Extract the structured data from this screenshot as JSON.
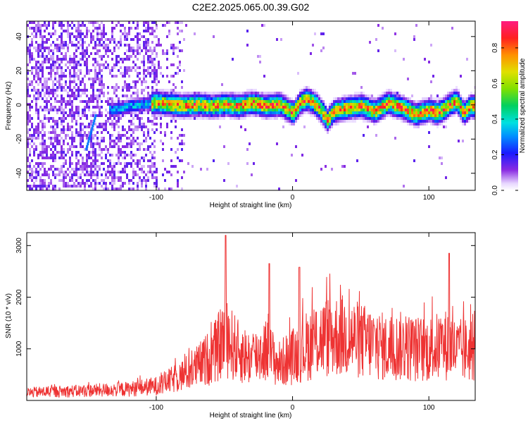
{
  "title": "C2E2.2025.065.00.39.G02",
  "chart_data": [
    {
      "type": "heatmap",
      "xlabel": "Height of straight line (km)",
      "ylabel": "Frequency (Hz)",
      "xlim": [
        -195,
        134
      ],
      "ylim": [
        -50,
        49
      ],
      "xticks": [
        -100,
        0,
        100
      ],
      "yticks": [
        -40,
        -20,
        0,
        20,
        40
      ],
      "grid": false,
      "signal_ridge": {
        "x": [
          -130,
          -120,
          -110,
          -100,
          -90,
          -80,
          -70,
          -60,
          -50,
          -40,
          -30,
          -20,
          -10,
          0,
          5,
          10,
          15,
          20,
          25,
          30,
          40,
          50,
          60,
          70,
          80,
          90,
          100,
          105,
          110,
          115,
          120,
          125,
          130
        ],
        "frequency": [
          -2,
          0,
          1,
          2,
          1,
          0,
          1,
          0,
          1,
          0,
          2,
          0,
          1,
          -4,
          2,
          4,
          2,
          -2,
          -8,
          -3,
          -1,
          0,
          -3,
          2,
          -1,
          -5,
          -2,
          -4,
          -2,
          1,
          3,
          -4,
          0
        ]
      },
      "colorbar": {
        "label": "Normalized spectral amplitude",
        "range": [
          0,
          0.95
        ],
        "ticks": [
          "0.0",
          "0.2",
          "0.4",
          "0.6",
          "0.8"
        ],
        "colormap": "rainbow"
      }
    },
    {
      "type": "line",
      "xlabel": "Height of straight line (km)",
      "ylabel": "SNR (10 * v/v)",
      "xlim": [
        -195,
        134
      ],
      "ylim": [
        0,
        3250
      ],
      "xticks": [
        -100,
        0,
        100
      ],
      "yticks": [
        1000,
        2000,
        3000
      ],
      "grid": false,
      "series": [
        {
          "color": "#ee3333",
          "x": [
            -195,
            -180,
            -160,
            -140,
            -120,
            -100,
            -90,
            -80,
            -70,
            -60,
            -55,
            -50,
            -40,
            -30,
            -20,
            -10,
            0,
            10,
            20,
            30,
            40,
            50,
            60,
            70,
            80,
            90,
            100,
            110,
            115,
            120,
            134
          ],
          "values": [
            150,
            170,
            180,
            200,
            220,
            280,
            380,
            500,
            650,
            850,
            1000,
            1250,
            950,
            800,
            1000,
            700,
            850,
            1050,
            1200,
            1250,
            1250,
            1150,
            1100,
            1000,
            1050,
            1000,
            1000,
            1050,
            1100,
            950,
            1000
          ]
        }
      ],
      "peaks": [
        {
          "x": -49,
          "value": 3200
        },
        {
          "x": -17,
          "value": 2650
        },
        {
          "x": 5,
          "value": 2580
        },
        {
          "x": 115,
          "value": 2850
        }
      ]
    }
  ]
}
